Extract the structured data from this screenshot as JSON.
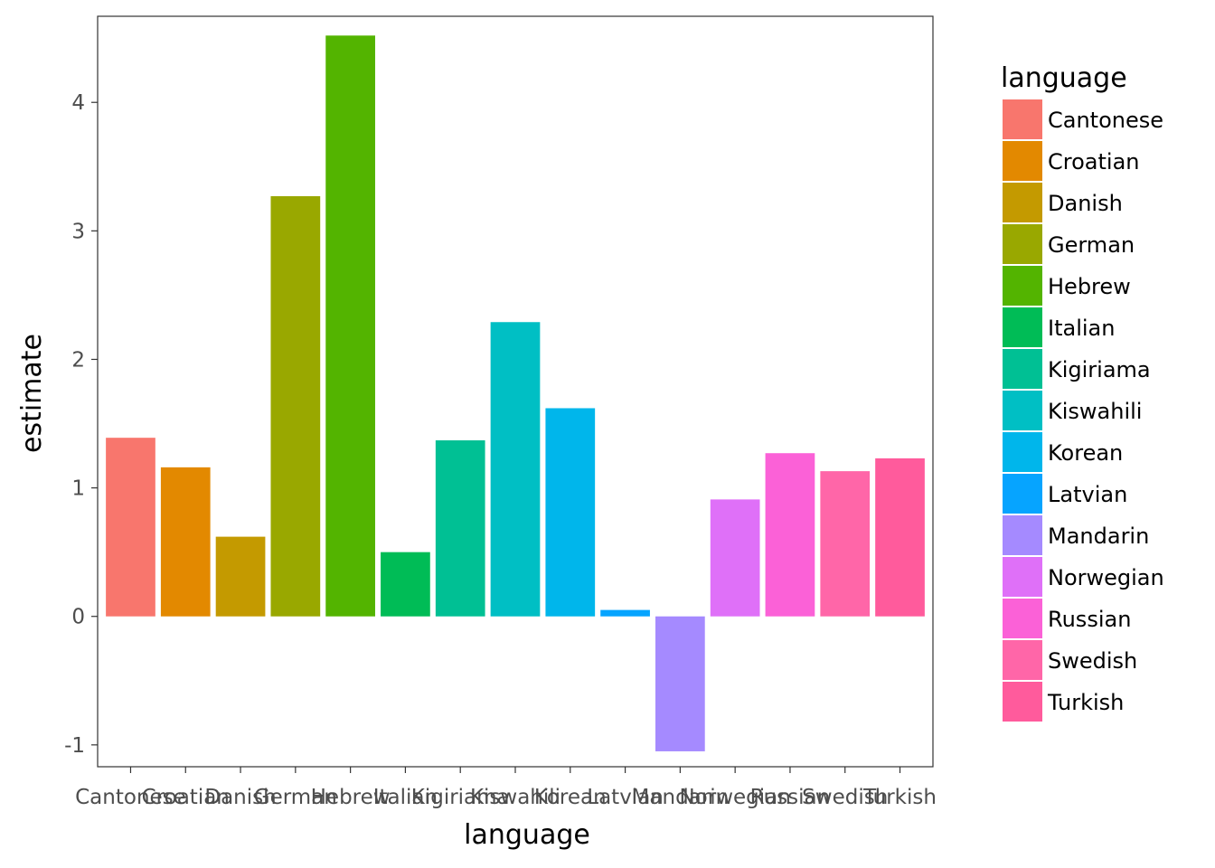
{
  "chart_data": {
    "type": "bar",
    "title": "",
    "xlabel": "language",
    "ylabel": "estimate",
    "ylim": [
      -1.17,
      4.67
    ],
    "yticks": [
      -1,
      0,
      1,
      2,
      3,
      4
    ],
    "ytick_labels": [
      "-1",
      "0",
      "1",
      "2",
      "3",
      "4"
    ],
    "grid": false,
    "legend_title": "language",
    "legend_position": "right",
    "categories": [
      "Cantonese",
      "Croatian",
      "Danish",
      "German",
      "Hebrew",
      "Italian",
      "Kigiriama",
      "Kiswahili",
      "Korean",
      "Latvian",
      "Mandarin",
      "Norwegian",
      "Russian",
      "Swedish",
      "Turkish"
    ],
    "values": [
      1.39,
      1.16,
      0.62,
      3.27,
      4.52,
      0.5,
      1.37,
      2.29,
      1.62,
      0.05,
      -1.05,
      0.91,
      1.27,
      1.13,
      1.23
    ],
    "colors": [
      "#F8766D",
      "#E38900",
      "#C49A00",
      "#99A800",
      "#53B400",
      "#00BC56",
      "#00C094",
      "#00BFC4",
      "#00B6EB",
      "#06A4FF",
      "#A58AFF",
      "#DF70F8",
      "#FB61D7",
      "#FF66A8",
      "#FF5B9C"
    ]
  }
}
